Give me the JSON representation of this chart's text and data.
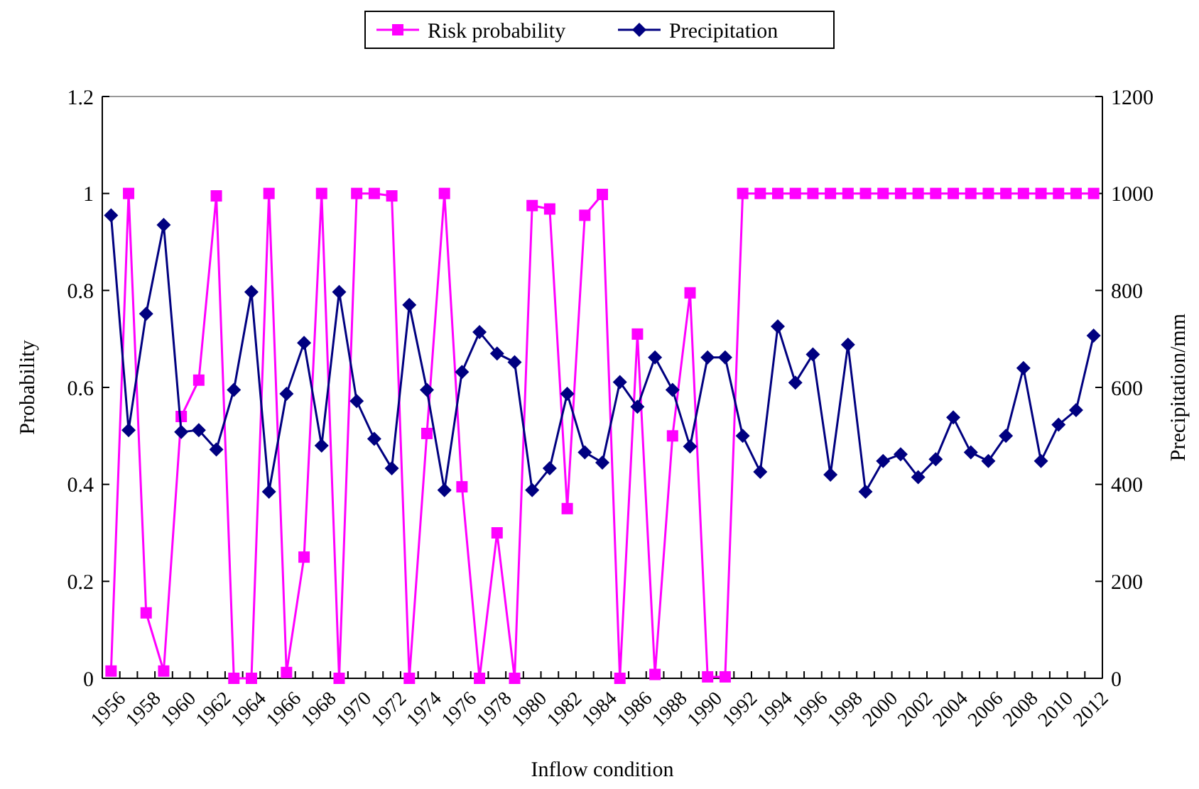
{
  "chart_data": {
    "type": "line",
    "xlabel": "Inflow condition",
    "ylabel": "Probability",
    "y2label": "Precipitation/mm",
    "categories": [
      "1956",
      null,
      "1958",
      null,
      "1960",
      null,
      "1962",
      null,
      "1964",
      null,
      "1966",
      null,
      "1968",
      null,
      "1970",
      null,
      "1972",
      null,
      "1974",
      null,
      "1976",
      null,
      "1978",
      null,
      "1980",
      null,
      "1982",
      null,
      "1984",
      null,
      "1986",
      null,
      "1988",
      null,
      "1990",
      null,
      "1992",
      null,
      "1994",
      null,
      "1996",
      null,
      "1998",
      null,
      "2000",
      null,
      "2002",
      null,
      "2004",
      null,
      "2006",
      null,
      "2008",
      null,
      "2010",
      null,
      "2012"
    ],
    "series": [
      {
        "name": "Risk probability",
        "color": "#ff00ff",
        "marker": "square",
        "values": [
          0.015,
          1.0,
          0.135,
          0.015,
          0.54,
          0.615,
          0.995,
          0,
          0,
          1.0,
          0.012,
          0.25,
          1.0,
          0,
          1.0,
          1.0,
          0.995,
          0,
          0.505,
          1.0,
          0.395,
          0,
          0.3,
          0,
          0.975,
          0.968,
          0.35,
          0.955,
          0.998,
          0,
          0.71,
          0.008,
          0.5,
          0.795,
          0.003,
          0.003,
          1,
          1,
          1,
          1,
          1,
          1,
          1,
          1,
          1,
          1,
          1,
          1,
          1,
          1,
          1,
          1,
          1,
          1,
          1,
          1,
          1
        ]
      },
      {
        "name": "Precipitation",
        "color": "#000080",
        "marker": "diamond",
        "axis": "y2",
        "values": [
          955,
          512,
          752,
          935,
          508,
          512,
          472,
          595,
          797,
          385,
          587,
          692,
          480,
          797,
          572,
          494,
          433,
          770,
          595,
          388,
          632,
          714,
          670,
          652,
          388,
          433,
          587,
          466,
          445,
          611,
          560,
          662,
          595,
          478,
          662,
          662,
          500,
          426,
          726,
          610,
          668,
          420,
          688,
          385,
          448,
          462,
          415,
          452,
          538,
          466,
          448,
          500,
          640,
          448,
          523,
          553,
          707
        ]
      }
    ],
    "ylim": [
      0,
      1.2
    ],
    "yticks": [
      0,
      0.2,
      0.4,
      0.6,
      0.8,
      1,
      1.2
    ],
    "y2lim": [
      0,
      1200
    ],
    "y2ticks": [
      0,
      200,
      400,
      600,
      800,
      1000,
      1200
    ],
    "grid": false,
    "legend": "top",
    "line_style": "solid"
  }
}
